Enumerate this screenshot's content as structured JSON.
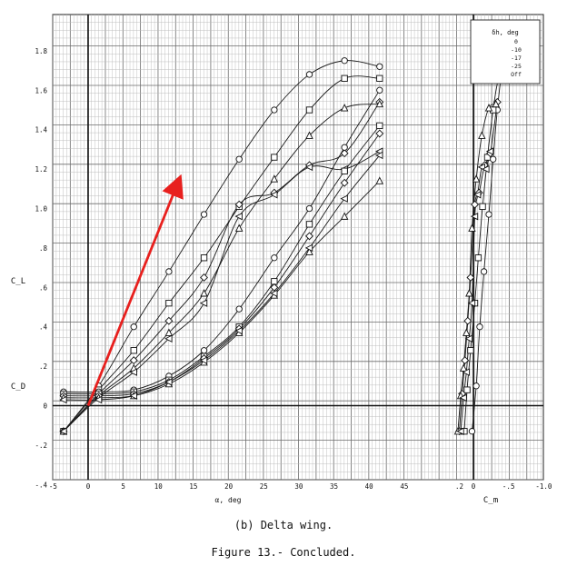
{
  "caption": "(b) Delta wing.",
  "figure_label": "Figure 13.- Concluded.",
  "chart_data": [
    {
      "type": "line",
      "title": "",
      "xlabel": "α, deg",
      "ylabel": "C_L",
      "secondary_label": "C_D",
      "xlim": [
        -5,
        45
      ],
      "ylim": [
        -0.45,
        1.9
      ],
      "xticks": [
        "-5",
        "0",
        "5",
        "10",
        "15",
        "20",
        "25",
        "30",
        "35",
        "40",
        "45"
      ],
      "yticks": [
        "-.4",
        "-.2",
        "0",
        ".2",
        ".4",
        ".6",
        ".8",
        "1.0",
        "1.2",
        "1.4",
        "1.6",
        "1.8"
      ],
      "grid": true,
      "legend_position": "top-right",
      "legend_title": "δh, deg",
      "series": [
        {
          "name": "0",
          "marker": "circle",
          "kind": "CL",
          "x": [
            -3.5,
            1.5,
            6.5,
            11.5,
            16.5,
            21.5,
            26.5,
            31.5,
            36.5,
            41.5
          ],
          "y": [
            -0.13,
            0.1,
            0.4,
            0.68,
            0.97,
            1.25,
            1.5,
            1.68,
            1.75,
            1.72
          ]
        },
        {
          "name": "-10",
          "marker": "square",
          "kind": "CL",
          "x": [
            -3.5,
            1.5,
            6.5,
            11.5,
            16.5,
            21.5,
            26.5,
            31.5,
            36.5,
            41.5
          ],
          "y": [
            -0.13,
            0.08,
            0.28,
            0.52,
            0.75,
            1.01,
            1.26,
            1.5,
            1.66,
            1.66
          ]
        },
        {
          "name": "-17",
          "marker": "diamond",
          "kind": "CL",
          "x": [
            -3.5,
            1.5,
            6.5,
            11.5,
            16.5,
            21.5,
            26.5,
            31.5,
            36.5,
            41.5
          ],
          "y": [
            -0.13,
            0.06,
            0.23,
            0.43,
            0.65,
            1.02,
            1.08,
            1.22,
            1.28,
            1.54
          ]
        },
        {
          "name": "-25",
          "marker": "triangle",
          "kind": "CL",
          "x": [
            -3.5,
            1.5,
            6.5,
            11.5,
            16.5,
            21.5,
            26.5,
            31.5,
            36.5,
            41.5
          ],
          "y": [
            -0.13,
            0.05,
            0.19,
            0.37,
            0.57,
            0.9,
            1.15,
            1.37,
            1.51,
            1.53
          ]
        },
        {
          "name": "Off",
          "marker": "triangle-left",
          "kind": "CL",
          "x": [
            -3.5,
            1.5,
            6.5,
            11.5,
            16.5,
            21.5,
            26.5,
            31.5,
            36.5,
            41.5
          ],
          "y": [
            -0.13,
            0.04,
            0.17,
            0.34,
            0.52,
            0.96,
            1.07,
            1.21,
            1.2,
            1.29
          ]
        },
        {
          "name": "0",
          "marker": "circle",
          "kind": "CD",
          "x": [
            -3.5,
            1.5,
            6.5,
            11.5,
            16.5,
            21.5,
            26.5,
            31.5,
            36.5,
            41.5
          ],
          "y": [
            0.07,
            0.07,
            0.08,
            0.15,
            0.28,
            0.49,
            0.75,
            1.0,
            1.31,
            1.6
          ]
        },
        {
          "name": "-10",
          "marker": "square",
          "kind": "CD",
          "x": [
            -3.5,
            1.5,
            6.5,
            11.5,
            16.5,
            21.5,
            26.5,
            31.5,
            36.5,
            41.5
          ],
          "y": [
            0.06,
            0.06,
            0.07,
            0.13,
            0.25,
            0.4,
            0.63,
            0.92,
            1.19,
            1.42
          ]
        },
        {
          "name": "-17",
          "marker": "diamond",
          "kind": "CD",
          "x": [
            -3.5,
            1.5,
            6.5,
            11.5,
            16.5,
            21.5,
            26.5,
            31.5,
            36.5,
            41.5
          ],
          "y": [
            0.05,
            0.05,
            0.06,
            0.12,
            0.24,
            0.39,
            0.6,
            0.86,
            1.13,
            1.38
          ]
        },
        {
          "name": "-25",
          "marker": "triangle",
          "kind": "CD",
          "x": [
            -3.5,
            1.5,
            6.5,
            11.5,
            16.5,
            21.5,
            26.5,
            31.5,
            36.5,
            41.5
          ],
          "y": [
            0.04,
            0.04,
            0.05,
            0.11,
            0.22,
            0.37,
            0.56,
            0.78,
            0.96,
            1.14
          ]
        },
        {
          "name": "Off",
          "marker": "triangle-left",
          "kind": "CD",
          "x": [
            -3.5,
            1.5,
            6.5,
            11.5,
            16.5,
            21.5,
            26.5,
            31.5,
            36.5,
            41.5
          ],
          "y": [
            0.03,
            0.03,
            0.05,
            0.12,
            0.23,
            0.38,
            0.57,
            0.8,
            1.05,
            1.27
          ]
        }
      ],
      "annotations": [
        {
          "type": "arrow",
          "color": "#e8201e",
          "from": [
            0,
            0.0
          ],
          "to": [
            13,
            1.15
          ]
        }
      ]
    },
    {
      "type": "line",
      "title": "",
      "xlabel": "C_m",
      "ylabel": "",
      "xlim": [
        0.25,
        -1.0
      ],
      "ylim": [
        -0.45,
        1.9
      ],
      "xticks": [
        ".2",
        "0",
        "-.5",
        "-1.0"
      ],
      "grid": true,
      "series": [
        {
          "name": "0",
          "marker": "circle",
          "x": [
            0.02,
            -0.04,
            -0.09,
            -0.15,
            -0.22,
            -0.28,
            -0.34,
            -0.4,
            -0.46,
            -0.5
          ],
          "y": [
            -0.13,
            0.1,
            0.4,
            0.68,
            0.97,
            1.25,
            1.5,
            1.68,
            1.75,
            1.72
          ]
        },
        {
          "name": "-10",
          "marker": "square",
          "x": [
            0.13,
            0.09,
            0.04,
            -0.02,
            -0.07,
            -0.13,
            -0.2,
            -0.28,
            -0.36,
            -0.46
          ],
          "y": [
            -0.13,
            0.08,
            0.28,
            0.52,
            0.75,
            1.01,
            1.26,
            1.5,
            1.66,
            1.66
          ]
        },
        {
          "name": "-17",
          "marker": "diamond",
          "x": [
            0.2,
            0.16,
            0.12,
            0.08,
            0.04,
            -0.02,
            -0.08,
            -0.16,
            -0.24,
            -0.34
          ],
          "y": [
            -0.13,
            0.06,
            0.23,
            0.43,
            0.65,
            1.02,
            1.08,
            1.22,
            1.28,
            1.54
          ]
        },
        {
          "name": "-25",
          "marker": "triangle",
          "x": [
            0.22,
            0.18,
            0.14,
            0.1,
            0.06,
            0.02,
            -0.04,
            -0.12,
            -0.22,
            -0.32
          ],
          "y": [
            -0.13,
            0.05,
            0.19,
            0.37,
            0.57,
            0.9,
            1.15,
            1.37,
            1.51,
            1.53
          ]
        },
        {
          "name": "Off",
          "marker": "triangle-left",
          "x": [
            0.18,
            0.14,
            0.1,
            0.06,
            0.02,
            -0.02,
            -0.06,
            -0.12,
            -0.18,
            -0.24
          ],
          "y": [
            -0.13,
            0.04,
            0.17,
            0.34,
            0.52,
            0.96,
            1.07,
            1.21,
            1.2,
            1.29
          ]
        }
      ]
    }
  ]
}
